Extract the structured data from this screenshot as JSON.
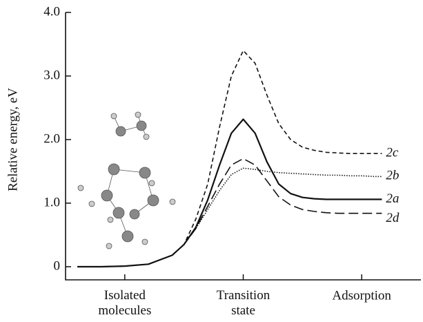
{
  "chart_data": {
    "type": "line",
    "ylabel": "Relative energy, eV",
    "xlim": [
      -1.5,
      1.5
    ],
    "xticks": [
      {
        "value": -1,
        "label": "Isolated molecules"
      },
      {
        "value": 0,
        "label": "Transition state"
      },
      {
        "value": 1,
        "label": "Adsorption"
      }
    ],
    "ylim": [
      0,
      4.0
    ],
    "yticks": [
      0,
      {
        "value": 1,
        "label": "1.0"
      },
      {
        "value": 2,
        "label": "2.0"
      },
      {
        "value": 3,
        "label": "3.0"
      },
      {
        "value": 4,
        "label": "4.0"
      }
    ],
    "x": [
      -1.4,
      -1.2,
      -1.0,
      -0.8,
      -0.6,
      -0.5,
      -0.4,
      -0.3,
      -0.2,
      -0.1,
      0,
      0.1,
      0.2,
      0.3,
      0.4,
      0.5,
      0.6,
      0.7,
      0.8,
      0.9,
      1.0,
      1.1,
      1.17
    ],
    "series": [
      {
        "name": "2c",
        "color": "#111",
        "style": "dashed",
        "values": [
          0,
          0,
          0.01,
          0.04,
          0.18,
          0.35,
          0.75,
          1.3,
          2.2,
          3.0,
          3.4,
          3.2,
          2.7,
          2.25,
          2.0,
          1.88,
          1.83,
          1.8,
          1.79,
          1.78,
          1.78,
          1.78,
          1.78
        ]
      },
      {
        "name": "2b",
        "color": "#111",
        "style": "dotted",
        "values": [
          0,
          0,
          0.01,
          0.04,
          0.18,
          0.35,
          0.6,
          0.9,
          1.2,
          1.45,
          1.55,
          1.53,
          1.5,
          1.48,
          1.47,
          1.46,
          1.45,
          1.44,
          1.44,
          1.43,
          1.43,
          1.42,
          1.42
        ]
      },
      {
        "name": "2a",
        "color": "#111",
        "style": "solid",
        "values": [
          0,
          0,
          0.01,
          0.04,
          0.18,
          0.35,
          0.62,
          1.05,
          1.6,
          2.1,
          2.32,
          2.1,
          1.65,
          1.3,
          1.15,
          1.09,
          1.07,
          1.06,
          1.06,
          1.06,
          1.06,
          1.06,
          1.06
        ]
      },
      {
        "name": "2d",
        "color": "#111",
        "style": "longdash",
        "values": [
          0,
          0,
          0.01,
          0.04,
          0.18,
          0.35,
          0.6,
          0.95,
          1.3,
          1.6,
          1.7,
          1.6,
          1.35,
          1.1,
          0.97,
          0.9,
          0.87,
          0.85,
          0.84,
          0.84,
          0.84,
          0.84,
          0.84
        ]
      }
    ]
  }
}
